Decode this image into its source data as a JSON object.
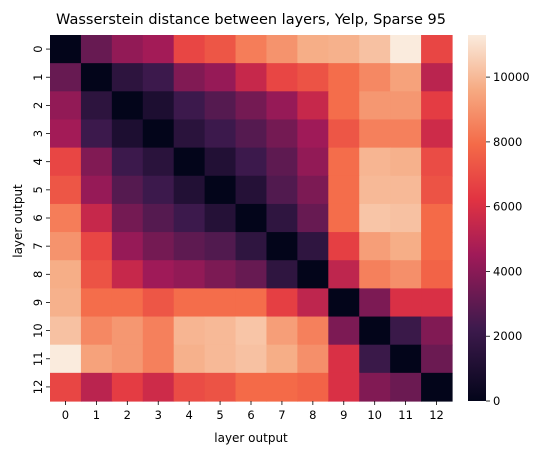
{
  "chart_data": {
    "type": "heatmap",
    "title": "Wasserstein distance between layers, Yelp, Sparse 95",
    "xlabel": "layer output",
    "ylabel": "layer output",
    "x_categories": [
      "0",
      "1",
      "2",
      "3",
      "4",
      "5",
      "6",
      "7",
      "8",
      "9",
      "10",
      "11",
      "12"
    ],
    "y_categories": [
      "0",
      "1",
      "2",
      "3",
      "4",
      "5",
      "6",
      "7",
      "8",
      "9",
      "10",
      "11",
      "12"
    ],
    "colorbar": {
      "min": 0,
      "max": 11300,
      "ticks": [
        0,
        2000,
        4000,
        6000,
        8000,
        10000
      ],
      "tick_labels": [
        "0",
        "2000",
        "4000",
        "6000",
        "8000",
        "10000"
      ],
      "colormap": "rocket"
    },
    "values": [
      [
        0,
        3200,
        4200,
        4600,
        6800,
        7300,
        8400,
        9000,
        9700,
        9800,
        10200,
        11300,
        6800
      ],
      [
        3200,
        0,
        1600,
        2200,
        3800,
        4300,
        5500,
        6800,
        7200,
        8000,
        8700,
        9400,
        5200
      ],
      [
        4200,
        1600,
        0,
        1000,
        2200,
        2800,
        3500,
        4300,
        5500,
        8000,
        9100,
        9100,
        6500
      ],
      [
        4600,
        2200,
        1000,
        0,
        1500,
        2200,
        2800,
        3500,
        4500,
        7300,
        8500,
        8500,
        5700
      ],
      [
        6800,
        3800,
        2200,
        1500,
        0,
        1200,
        2200,
        3000,
        4200,
        8000,
        9900,
        9800,
        7000
      ],
      [
        7300,
        4300,
        2800,
        2200,
        1200,
        0,
        1300,
        2700,
        3700,
        8000,
        10000,
        10000,
        7200
      ],
      [
        8400,
        5500,
        3500,
        2800,
        2200,
        1300,
        0,
        1700,
        3200,
        8000,
        10300,
        10200,
        7900
      ],
      [
        9000,
        6800,
        4300,
        3500,
        3000,
        2700,
        1700,
        0,
        1700,
        6600,
        9300,
        9700,
        7900
      ],
      [
        9700,
        7200,
        5500,
        4500,
        4200,
        3700,
        3200,
        1700,
        0,
        5300,
        8500,
        8900,
        7700
      ],
      [
        9800,
        8000,
        8000,
        7300,
        8000,
        8000,
        8000,
        6600,
        5300,
        0,
        3700,
        6000,
        6000
      ],
      [
        10200,
        8700,
        9100,
        8500,
        9900,
        10000,
        10300,
        9300,
        8500,
        3700,
        0,
        2100,
        3800
      ],
      [
        11300,
        9400,
        9100,
        8500,
        9800,
        10000,
        10200,
        9700,
        8900,
        6000,
        2100,
        0,
        3300
      ],
      [
        6800,
        5200,
        6500,
        5700,
        7000,
        7200,
        7900,
        7900,
        7700,
        6000,
        3800,
        3300,
        0
      ]
    ]
  }
}
